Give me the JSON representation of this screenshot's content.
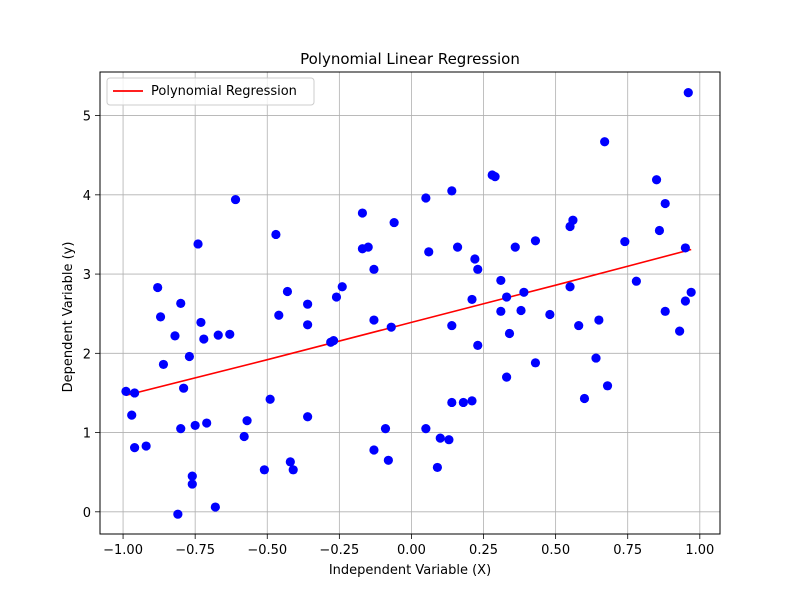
{
  "chart_data": {
    "type": "scatter",
    "title": "Polynomial Linear Regression",
    "xlabel": "Independent Variable (X)",
    "ylabel": "Dependent Variable (y)",
    "xlim": [
      -1.08,
      1.07
    ],
    "ylim": [
      -0.28,
      5.55
    ],
    "grid": true,
    "legend_placement": "top-left",
    "x_ticks": [
      -1.0,
      -0.75,
      -0.5,
      -0.25,
      0.0,
      0.25,
      0.5,
      0.75,
      1.0
    ],
    "x_tick_labels": [
      "−1.00",
      "−0.75",
      "−0.50",
      "−0.25",
      "0.00",
      "0.25",
      "0.50",
      "0.75",
      "1.00"
    ],
    "y_ticks": [
      0,
      1,
      2,
      3,
      4,
      5
    ],
    "y_tick_labels": [
      "0",
      "1",
      "2",
      "3",
      "4",
      "5"
    ],
    "colors": {
      "points": "#0000ff",
      "line": "#ff0000",
      "grid": "#b0b0b0"
    },
    "points": [
      [
        -0.99,
        1.52
      ],
      [
        -0.97,
        1.22
      ],
      [
        -0.96,
        0.81
      ],
      [
        -0.96,
        1.5
      ],
      [
        -0.92,
        0.83
      ],
      [
        -0.88,
        2.83
      ],
      [
        -0.87,
        2.46
      ],
      [
        -0.86,
        1.86
      ],
      [
        -0.82,
        2.22
      ],
      [
        -0.81,
        -0.03
      ],
      [
        -0.8,
        1.05
      ],
      [
        -0.8,
        2.63
      ],
      [
        -0.79,
        1.56
      ],
      [
        -0.77,
        1.96
      ],
      [
        -0.76,
        0.35
      ],
      [
        -0.76,
        0.45
      ],
      [
        -0.75,
        1.09
      ],
      [
        -0.74,
        3.38
      ],
      [
        -0.73,
        2.39
      ],
      [
        -0.72,
        2.18
      ],
      [
        -0.71,
        1.12
      ],
      [
        -0.68,
        0.06
      ],
      [
        -0.67,
        2.23
      ],
      [
        -0.63,
        2.24
      ],
      [
        -0.61,
        3.94
      ],
      [
        -0.58,
        0.95
      ],
      [
        -0.57,
        1.15
      ],
      [
        -0.51,
        0.53
      ],
      [
        -0.49,
        1.42
      ],
      [
        -0.47,
        3.5
      ],
      [
        -0.46,
        2.48
      ],
      [
        -0.43,
        2.78
      ],
      [
        -0.42,
        0.63
      ],
      [
        -0.41,
        0.53
      ],
      [
        -0.36,
        2.36
      ],
      [
        -0.36,
        2.62
      ],
      [
        -0.36,
        1.2
      ],
      [
        -0.28,
        2.14
      ],
      [
        -0.27,
        2.16
      ],
      [
        -0.26,
        2.71
      ],
      [
        -0.24,
        2.84
      ],
      [
        -0.17,
        3.77
      ],
      [
        -0.17,
        3.32
      ],
      [
        -0.15,
        3.34
      ],
      [
        -0.13,
        3.06
      ],
      [
        -0.13,
        2.42
      ],
      [
        -0.13,
        0.78
      ],
      [
        -0.09,
        1.05
      ],
      [
        -0.08,
        0.65
      ],
      [
        -0.07,
        2.33
      ],
      [
        -0.06,
        3.65
      ],
      [
        0.05,
        1.05
      ],
      [
        0.05,
        3.96
      ],
      [
        0.06,
        3.28
      ],
      [
        0.09,
        0.56
      ],
      [
        0.1,
        0.93
      ],
      [
        0.13,
        0.91
      ],
      [
        0.14,
        2.35
      ],
      [
        0.14,
        4.05
      ],
      [
        0.14,
        1.38
      ],
      [
        0.16,
        3.34
      ],
      [
        0.18,
        1.38
      ],
      [
        0.21,
        2.68
      ],
      [
        0.21,
        1.4
      ],
      [
        0.22,
        3.19
      ],
      [
        0.23,
        3.06
      ],
      [
        0.23,
        2.1
      ],
      [
        0.28,
        4.25
      ],
      [
        0.29,
        4.23
      ],
      [
        0.31,
        2.92
      ],
      [
        0.31,
        2.53
      ],
      [
        0.33,
        2.71
      ],
      [
        0.33,
        1.7
      ],
      [
        0.34,
        2.25
      ],
      [
        0.36,
        3.34
      ],
      [
        0.38,
        2.54
      ],
      [
        0.39,
        2.77
      ],
      [
        0.43,
        3.42
      ],
      [
        0.43,
        1.88
      ],
      [
        0.48,
        2.49
      ],
      [
        0.55,
        3.6
      ],
      [
        0.55,
        2.84
      ],
      [
        0.56,
        3.68
      ],
      [
        0.58,
        2.35
      ],
      [
        0.6,
        1.43
      ],
      [
        0.64,
        1.94
      ],
      [
        0.65,
        2.42
      ],
      [
        0.67,
        4.67
      ],
      [
        0.68,
        1.59
      ],
      [
        0.74,
        3.41
      ],
      [
        0.78,
        2.91
      ],
      [
        0.85,
        4.19
      ],
      [
        0.86,
        3.55
      ],
      [
        0.88,
        3.89
      ],
      [
        0.88,
        2.53
      ],
      [
        0.93,
        2.28
      ],
      [
        0.95,
        3.33
      ],
      [
        0.95,
        2.66
      ],
      [
        0.96,
        5.29
      ],
      [
        0.97,
        2.77
      ]
    ],
    "series": [
      {
        "name": "Polynomial Regression",
        "type": "line",
        "x": [
          -0.99,
          -0.5,
          0.0,
          0.5,
          0.97
        ],
        "y": [
          1.47,
          1.92,
          2.39,
          2.86,
          3.31
        ]
      }
    ]
  }
}
